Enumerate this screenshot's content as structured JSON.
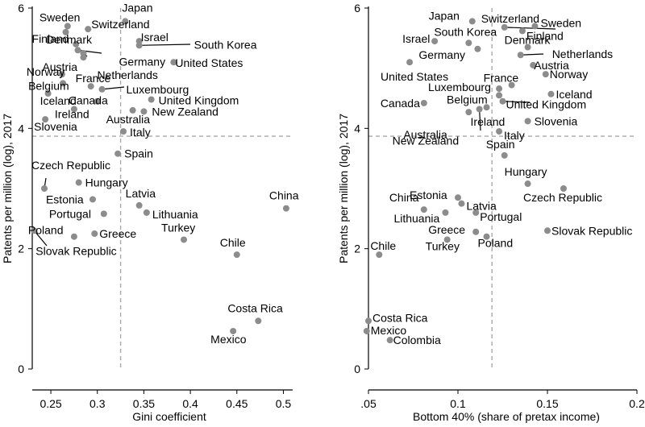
{
  "chart_data": [
    {
      "type": "scatter",
      "xlabel": "Gini coefficient",
      "ylabel": "Patents per million (log), 2017",
      "xlim": [
        0.23,
        0.51
      ],
      "ylim": [
        0,
        6
      ],
      "xticks": [
        0.25,
        0.3,
        0.35,
        0.4,
        0.45,
        0.5
      ],
      "xtick_labels": [
        "0.25",
        "0.3",
        "0.35",
        "0.4",
        "0.45",
        "0.5"
      ],
      "yticks": [
        0,
        2,
        4,
        6
      ],
      "ytick_labels": [
        "0",
        "2",
        "4",
        "6"
      ],
      "ref_x": 0.325,
      "ref_y": 3.87,
      "grid": false,
      "points": [
        {
          "label": "Sweden",
          "x": 0.268,
          "y": 5.7
        },
        {
          "label": "Japan",
          "x": 0.33,
          "y": 5.78
        },
        {
          "label": "Switzerland",
          "x": 0.29,
          "y": 5.65
        },
        {
          "label": "Finland",
          "x": 0.266,
          "y": 5.6
        },
        {
          "label": "Israel",
          "x": 0.345,
          "y": 5.45
        },
        {
          "label": "Denmark",
          "x": 0.277,
          "y": 5.4
        },
        {
          "label": "South Korea",
          "x": 0.345,
          "y": 5.38
        },
        {
          "label": "Germany",
          "x": 0.279,
          "y": 5.3
        },
        {
          "label": "Austria",
          "x": 0.285,
          "y": 5.18
        },
        {
          "label": "United States",
          "x": 0.382,
          "y": 5.1
        },
        {
          "label": "Netherlands",
          "x": 0.285,
          "y": 5.25
        },
        {
          "label": "Norway",
          "x": 0.262,
          "y": 4.9
        },
        {
          "label": "Belgium",
          "x": 0.263,
          "y": 4.75
        },
        {
          "label": "France",
          "x": 0.293,
          "y": 4.7
        },
        {
          "label": "Luxembourg",
          "x": 0.305,
          "y": 4.65
        },
        {
          "label": "Iceland",
          "x": 0.247,
          "y": 4.58
        },
        {
          "label": "Canada",
          "x": 0.3,
          "y": 4.45
        },
        {
          "label": "United Kingdom",
          "x": 0.358,
          "y": 4.48
        },
        {
          "label": "Ireland",
          "x": 0.275,
          "y": 4.32
        },
        {
          "label": "Australia",
          "x": 0.338,
          "y": 4.3
        },
        {
          "label": "New Zealand",
          "x": 0.35,
          "y": 4.28
        },
        {
          "label": "Slovenia",
          "x": 0.244,
          "y": 4.15
        },
        {
          "label": "Italy",
          "x": 0.328,
          "y": 3.95
        },
        {
          "label": "Spain",
          "x": 0.322,
          "y": 3.58
        },
        {
          "label": "Czech Republic",
          "x": 0.243,
          "y": 3.0
        },
        {
          "label": "Hungary",
          "x": 0.28,
          "y": 3.1
        },
        {
          "label": "Estonia",
          "x": 0.295,
          "y": 2.82
        },
        {
          "label": "Latvia",
          "x": 0.345,
          "y": 2.72
        },
        {
          "label": "China",
          "x": 0.503,
          "y": 2.67
        },
        {
          "label": "Lithuania",
          "x": 0.353,
          "y": 2.6
        },
        {
          "label": "Portugal",
          "x": 0.307,
          "y": 2.58
        },
        {
          "label": "Slovak Republic",
          "x": 0.232,
          "y": 2.3
        },
        {
          "label": "Poland",
          "x": 0.275,
          "y": 2.2
        },
        {
          "label": "Greece",
          "x": 0.297,
          "y": 2.25
        },
        {
          "label": "Turkey",
          "x": 0.393,
          "y": 2.15
        },
        {
          "label": "Chile",
          "x": 0.45,
          "y": 1.9
        },
        {
          "label": "Costa Rica",
          "x": 0.473,
          "y": 0.8
        },
        {
          "label": "Mexico",
          "x": 0.446,
          "y": 0.63
        }
      ]
    },
    {
      "type": "scatter",
      "xlabel": "Bottom 40% (share of pretax income)",
      "ylabel": "Patents per million (log), 2017",
      "xlim": [
        0.05,
        0.2
      ],
      "ylim": [
        0,
        6
      ],
      "xticks": [
        0.05,
        0.1,
        0.15,
        0.2
      ],
      "xtick_labels": [
        ".05",
        "0.1",
        "0.15",
        "0.2"
      ],
      "yticks": [
        0,
        2,
        4,
        6
      ],
      "ytick_labels": [
        "0",
        "2",
        "4",
        "6"
      ],
      "ref_x": 0.119,
      "ref_y": 3.87,
      "grid": false,
      "points": [
        {
          "label": "Japan",
          "x": 0.108,
          "y": 5.78
        },
        {
          "label": "Switzerland",
          "x": 0.126,
          "y": 5.68
        },
        {
          "label": "Sweden",
          "x": 0.143,
          "y": 5.7
        },
        {
          "label": "Finland",
          "x": 0.136,
          "y": 5.62
        },
        {
          "label": "Israel",
          "x": 0.087,
          "y": 5.45
        },
        {
          "label": "South Korea",
          "x": 0.106,
          "y": 5.42
        },
        {
          "label": "Denmark",
          "x": 0.139,
          "y": 5.35
        },
        {
          "label": "Germany",
          "x": 0.111,
          "y": 5.32
        },
        {
          "label": "Netherlands",
          "x": 0.135,
          "y": 5.22
        },
        {
          "label": "United States",
          "x": 0.073,
          "y": 5.1
        },
        {
          "label": "Austria",
          "x": 0.142,
          "y": 5.05
        },
        {
          "label": "Norway",
          "x": 0.149,
          "y": 4.9
        },
        {
          "label": "France",
          "x": 0.13,
          "y": 4.72
        },
        {
          "label": "Luxembourg",
          "x": 0.123,
          "y": 4.66
        },
        {
          "label": "Iceland",
          "x": 0.152,
          "y": 4.57
        },
        {
          "label": "Belgium",
          "x": 0.123,
          "y": 4.55
        },
        {
          "label": "Canada",
          "x": 0.081,
          "y": 4.42
        },
        {
          "label": "United Kingdom",
          "x": 0.125,
          "y": 4.45
        },
        {
          "label": "Ireland",
          "x": 0.116,
          "y": 4.35
        },
        {
          "label": "Slovenia",
          "x": 0.139,
          "y": 4.12
        },
        {
          "label": "Australia",
          "x": 0.106,
          "y": 4.27
        },
        {
          "label": "New Zealand",
          "x": 0.112,
          "y": 4.32
        },
        {
          "label": "Italy",
          "x": 0.123,
          "y": 3.95
        },
        {
          "label": "Spain",
          "x": 0.126,
          "y": 3.55
        },
        {
          "label": "Hungary",
          "x": 0.139,
          "y": 3.08
        },
        {
          "label": "Czech Republic",
          "x": 0.159,
          "y": 3.0
        },
        {
          "label": "Estonia",
          "x": 0.1,
          "y": 2.85
        },
        {
          "label": "Latvia",
          "x": 0.102,
          "y": 2.75
        },
        {
          "label": "China",
          "x": 0.081,
          "y": 2.65
        },
        {
          "label": "Lithuania",
          "x": 0.093,
          "y": 2.6
        },
        {
          "label": "Portugal",
          "x": 0.11,
          "y": 2.6
        },
        {
          "label": "Slovak Republic",
          "x": 0.15,
          "y": 2.3
        },
        {
          "label": "Greece",
          "x": 0.11,
          "y": 2.28
        },
        {
          "label": "Poland",
          "x": 0.116,
          "y": 2.2
        },
        {
          "label": "Turkey",
          "x": 0.094,
          "y": 2.15
        },
        {
          "label": "Chile",
          "x": 0.056,
          "y": 1.9
        },
        {
          "label": "Costa Rica",
          "x": 0.05,
          "y": 0.8
        },
        {
          "label": "Mexico",
          "x": 0.049,
          "y": 0.63
        },
        {
          "label": "Colombia",
          "x": 0.062,
          "y": 0.48
        }
      ]
    }
  ],
  "colors": {
    "point": "#8c8c8c",
    "reference_line": "#a8a8a8",
    "axis": "#000000"
  }
}
